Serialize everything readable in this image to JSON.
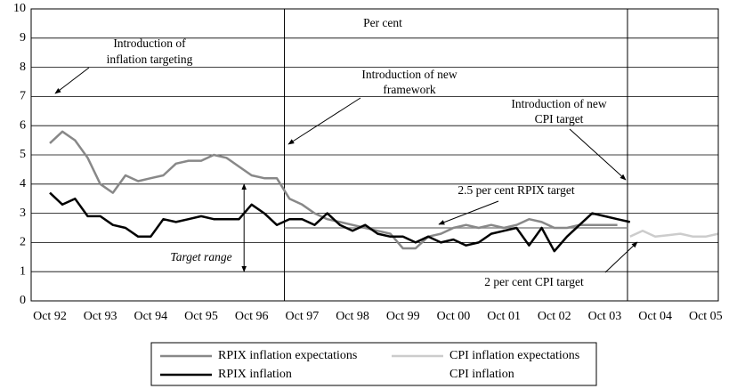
{
  "chart_data": {
    "type": "line",
    "annotations": {
      "unit": "Per cent",
      "inflation_targeting": [
        "Introduction of",
        "inflation targeting"
      ],
      "new_framework": [
        "Introduction of new",
        "framework"
      ],
      "cpi_target": [
        "Introduction of new",
        "CPI target"
      ],
      "rpix_target": "2.5 per cent RPIX target",
      "cpi_target_level": "2 per cent CPI target",
      "target_range": "Target range"
    },
    "target_range": {
      "x": 1996.6,
      "low": 1,
      "high": 4
    },
    "vlines": [
      1997.4,
      2004.2
    ],
    "reference_lines": [
      {
        "value": 2.5,
        "from": 1997.4,
        "to": 2004.2,
        "color": "#888888"
      }
    ],
    "x": [
      1992.75,
      1993,
      1993.25,
      1993.5,
      1993.75,
      1994,
      1994.25,
      1994.5,
      1994.75,
      1995,
      1995.25,
      1995.5,
      1995.75,
      1996,
      1996.25,
      1996.5,
      1996.75,
      1997,
      1997.25,
      1997.5,
      1997.75,
      1998,
      1998.25,
      1998.5,
      1998.75,
      1999,
      1999.25,
      1999.5,
      1999.75,
      2000,
      2000.25,
      2000.5,
      2000.75,
      2001,
      2001.25,
      2001.5,
      2001.75,
      2002,
      2002.25,
      2002.5,
      2002.75,
      2003,
      2003.25,
      2003.5,
      2003.75,
      2004,
      2004.25,
      2004.5,
      2004.75,
      2005,
      2005.25,
      2005.5,
      2005.75,
      2006
    ],
    "series": [
      {
        "name": "RPIX inflation expectations",
        "color": "#888888",
        "width": 2.5,
        "values": [
          5.4,
          5.8,
          5.5,
          4.9,
          4.0,
          3.7,
          4.3,
          4.1,
          4.2,
          4.3,
          4.7,
          4.8,
          4.8,
          5.0,
          4.9,
          4.6,
          4.3,
          4.2,
          4.2,
          3.5,
          3.3,
          3.0,
          2.8,
          2.7,
          2.6,
          2.5,
          2.4,
          2.3,
          1.8,
          1.8,
          2.2,
          2.3,
          2.5,
          2.6,
          2.5,
          2.6,
          2.5,
          2.6,
          2.8,
          2.7,
          2.5,
          2.5,
          2.6,
          2.6,
          2.6,
          2.6,
          null,
          null,
          null,
          null,
          null,
          null,
          null,
          null
        ]
      },
      {
        "name": "CPI inflation expectations",
        "color": "#cccccc",
        "width": 2.5,
        "values": [
          null,
          null,
          null,
          null,
          null,
          null,
          null,
          null,
          null,
          null,
          null,
          null,
          null,
          null,
          null,
          null,
          null,
          null,
          null,
          null,
          null,
          null,
          null,
          null,
          null,
          null,
          null,
          null,
          null,
          null,
          null,
          null,
          null,
          null,
          null,
          null,
          null,
          null,
          null,
          null,
          null,
          null,
          null,
          null,
          null,
          null,
          2.2,
          2.4,
          2.2,
          2.25,
          2.3,
          2.2,
          2.2,
          2.3
        ]
      },
      {
        "name": "RPIX inflation",
        "color": "#000000",
        "width": 2.5,
        "values": [
          3.7,
          3.3,
          3.5,
          2.9,
          2.9,
          2.6,
          2.5,
          2.2,
          2.2,
          2.8,
          2.7,
          2.8,
          2.9,
          2.8,
          2.8,
          2.8,
          3.3,
          3.0,
          2.6,
          2.8,
          2.8,
          2.6,
          3.0,
          2.6,
          2.4,
          2.6,
          2.3,
          2.2,
          2.2,
          2.0,
          2.2,
          2.0,
          2.1,
          1.9,
          2.0,
          2.3,
          2.4,
          2.5,
          1.9,
          2.5,
          1.7,
          2.2,
          2.6,
          3.0,
          2.9,
          2.8,
          2.7,
          null,
          null,
          null,
          null,
          null,
          null,
          null
        ]
      },
      {
        "name": "CPI inflation",
        "color": "#ffffff",
        "width": 2.5,
        "values": [
          null,
          null,
          null,
          null,
          null,
          null,
          null,
          null,
          null,
          null,
          null,
          null,
          null,
          null,
          null,
          null,
          null,
          null,
          null,
          null,
          null,
          null,
          null,
          null,
          null,
          null,
          null,
          null,
          null,
          null,
          null,
          null,
          null,
          null,
          null,
          null,
          null,
          null,
          null,
          null,
          null,
          null,
          null,
          null,
          null,
          null,
          null,
          null,
          null,
          null,
          null,
          null,
          null,
          null
        ]
      }
    ],
    "xlim": [
      1992.38,
      2006.0
    ],
    "xticks": [
      {
        "value": 1992.75,
        "label": "Oct 92"
      },
      {
        "value": 1993.75,
        "label": "Oct 93"
      },
      {
        "value": 1994.75,
        "label": "Oct 94"
      },
      {
        "value": 1995.75,
        "label": "Oct 95"
      },
      {
        "value": 1996.75,
        "label": "Oct 96"
      },
      {
        "value": 1997.75,
        "label": "Oct 97"
      },
      {
        "value": 1998.75,
        "label": "Oct 98"
      },
      {
        "value": 1999.75,
        "label": "Oct 99"
      },
      {
        "value": 2000.75,
        "label": "Oct 00"
      },
      {
        "value": 2001.75,
        "label": "Oct 01"
      },
      {
        "value": 2002.75,
        "label": "Oct 02"
      },
      {
        "value": 2003.75,
        "label": "Oct 03"
      },
      {
        "value": 2004.75,
        "label": "Oct 04"
      },
      {
        "value": 2005.75,
        "label": "Oct 05"
      }
    ],
    "ylim": [
      0,
      10
    ],
    "yticks": [
      0,
      1,
      2,
      3,
      4,
      5,
      6,
      7,
      8,
      9,
      10
    ],
    "grid": true
  }
}
